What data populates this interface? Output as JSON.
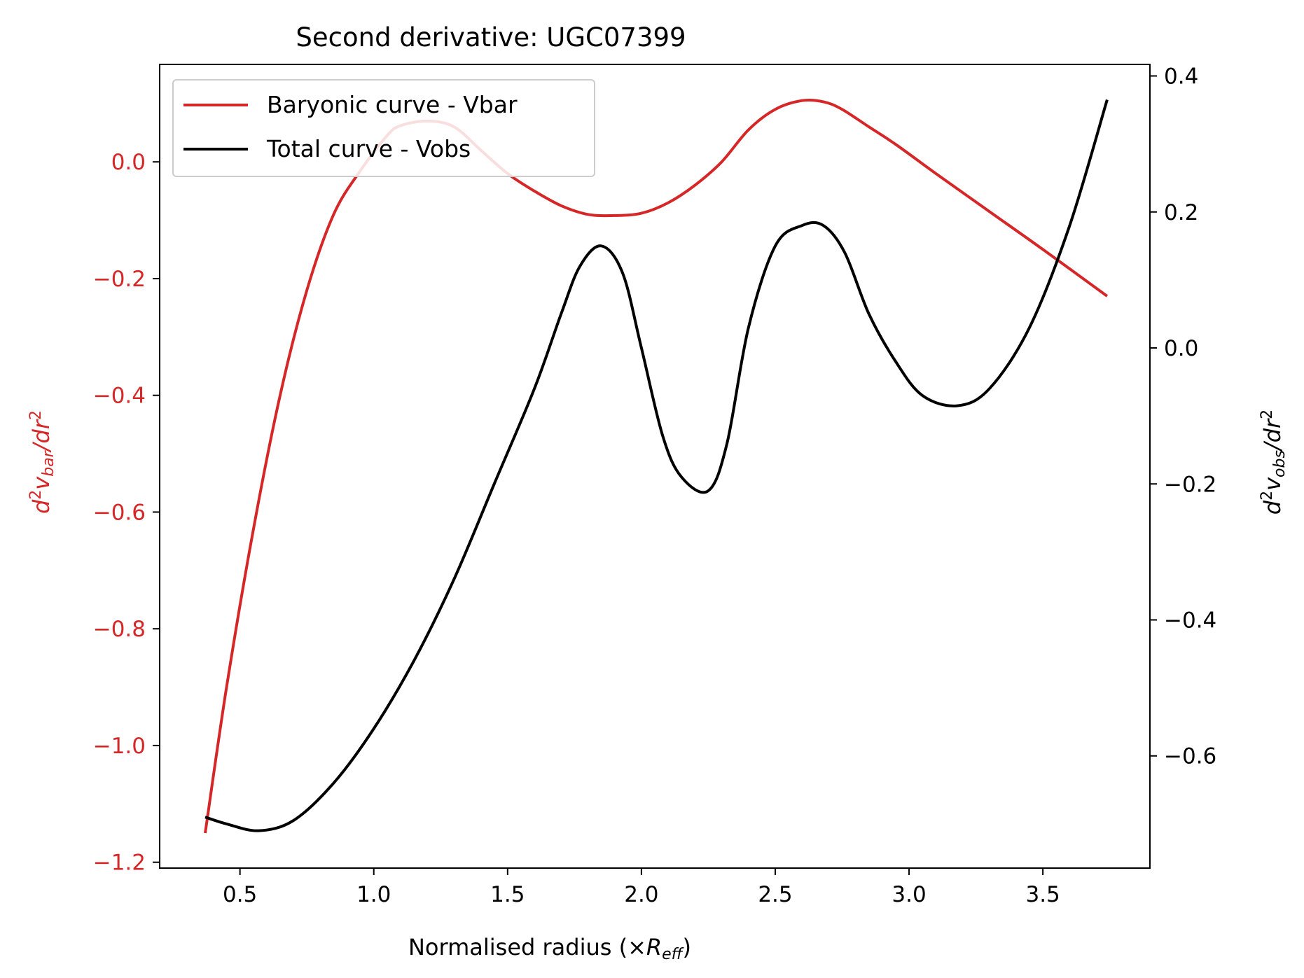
{
  "chart_data": {
    "type": "line",
    "title": "Second derivative: UGC07399",
    "xlabel": "Normalised radius (×R_eff)",
    "xlabel_parts": {
      "main": "Normalised radius (×",
      "var": "R",
      "sub": "eff",
      "close": ")"
    },
    "ylabel_left": "d^2v_bar/dr^2",
    "ylabel_right": "d^2v_obs/dr^2",
    "xlim": [
      0.2,
      3.9
    ],
    "ylim_left": [
      -1.21,
      0.167
    ],
    "ylim_right": [
      -0.765,
      0.417
    ],
    "x_ticks": [
      "0.5",
      "1.0",
      "1.5",
      "2.0",
      "2.5",
      "3.0",
      "3.5"
    ],
    "y_left_ticks": [
      "0.0",
      "−0.2",
      "−0.4",
      "−0.6",
      "−0.8",
      "−1.0",
      "−1.2"
    ],
    "y_right_ticks": [
      "0.4",
      "0.2",
      "0.0",
      "−0.2",
      "−0.4",
      "−0.6"
    ],
    "legend_position": "upper-left",
    "colors": {
      "bar": "#d62728",
      "obs": "#000000",
      "left_axis": "#d62728",
      "right_axis": "#000000"
    },
    "series": [
      {
        "name": "Baryonic curve - Vbar",
        "axis": "left",
        "x": [
          0.37,
          0.45,
          0.55,
          0.65,
          0.75,
          0.85,
          0.95,
          1.05,
          1.1,
          1.2,
          1.3,
          1.4,
          1.5,
          1.6,
          1.7,
          1.8,
          1.9,
          2.0,
          2.1,
          2.2,
          2.3,
          2.4,
          2.5,
          2.6,
          2.68,
          2.75,
          2.85,
          2.95,
          3.1,
          3.3,
          3.5,
          3.74
        ],
        "y": [
          -1.15,
          -0.9,
          -0.63,
          -0.4,
          -0.22,
          -0.09,
          -0.015,
          0.045,
          0.062,
          0.07,
          0.06,
          0.02,
          -0.02,
          -0.05,
          -0.075,
          -0.09,
          -0.092,
          -0.088,
          -0.07,
          -0.04,
          0.0,
          0.055,
          0.09,
          0.105,
          0.103,
          0.09,
          0.06,
          0.03,
          -0.02,
          -0.085,
          -0.15,
          -0.23
        ]
      },
      {
        "name": "Total curve - Vobs",
        "axis": "right",
        "x": [
          0.37,
          0.45,
          0.57,
          0.7,
          0.85,
          1.0,
          1.15,
          1.3,
          1.45,
          1.6,
          1.7,
          1.77,
          1.85,
          1.93,
          2.0,
          2.08,
          2.15,
          2.25,
          2.32,
          2.4,
          2.5,
          2.6,
          2.68,
          2.76,
          2.85,
          2.95,
          3.05,
          3.18,
          3.3,
          3.45,
          3.6,
          3.74
        ],
        "y": [
          -0.69,
          -0.7,
          -0.71,
          -0.695,
          -0.64,
          -0.56,
          -0.46,
          -0.34,
          -0.2,
          -0.06,
          0.05,
          0.12,
          0.15,
          0.11,
          0.0,
          -0.13,
          -0.19,
          -0.21,
          -0.14,
          0.03,
          0.15,
          0.18,
          0.18,
          0.14,
          0.05,
          -0.02,
          -0.07,
          -0.085,
          -0.06,
          0.03,
          0.18,
          0.365
        ]
      }
    ]
  }
}
